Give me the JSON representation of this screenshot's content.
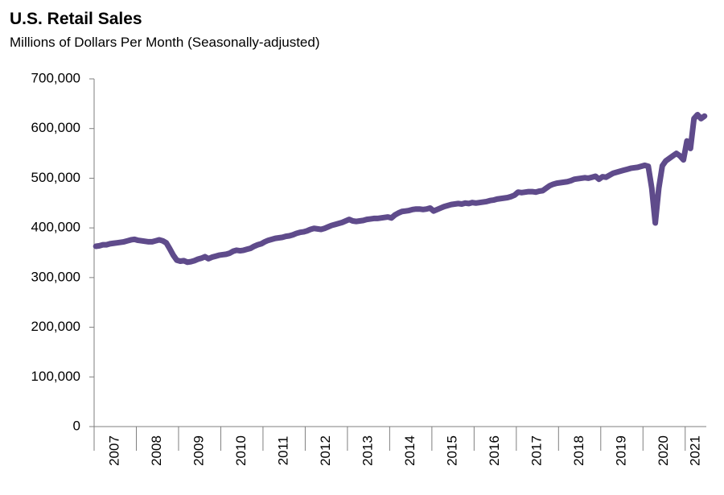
{
  "chart_data": {
    "type": "line",
    "title": "U.S. Retail Sales",
    "subtitle": "Millions of Dollars Per Month (Seasonally-adjusted)",
    "categories": [
      "2007",
      null,
      null,
      null,
      null,
      null,
      null,
      null,
      null,
      null,
      null,
      null,
      "2008",
      null,
      null,
      null,
      null,
      null,
      null,
      null,
      null,
      null,
      null,
      null,
      "2009",
      null,
      null,
      null,
      null,
      null,
      null,
      null,
      null,
      null,
      null,
      null,
      "2010",
      null,
      null,
      null,
      null,
      null,
      null,
      null,
      null,
      null,
      null,
      null,
      "2011",
      null,
      null,
      null,
      null,
      null,
      null,
      null,
      null,
      null,
      null,
      null,
      "2012",
      null,
      null,
      null,
      null,
      null,
      null,
      null,
      null,
      null,
      null,
      null,
      "2013",
      null,
      null,
      null,
      null,
      null,
      null,
      null,
      null,
      null,
      null,
      null,
      "2014",
      null,
      null,
      null,
      null,
      null,
      null,
      null,
      null,
      null,
      null,
      null,
      "2015",
      null,
      null,
      null,
      null,
      null,
      null,
      null,
      null,
      null,
      null,
      null,
      "2016",
      null,
      null,
      null,
      null,
      null,
      null,
      null,
      null,
      null,
      null,
      null,
      "2017",
      null,
      null,
      null,
      null,
      null,
      null,
      null,
      null,
      null,
      null,
      null,
      "2018",
      null,
      null,
      null,
      null,
      null,
      null,
      null,
      null,
      null,
      null,
      null,
      "2019",
      null,
      null,
      null,
      null,
      null,
      null,
      null,
      null,
      null,
      null,
      null,
      "2020",
      null,
      null,
      null,
      null,
      null,
      null,
      null,
      null,
      null,
      null,
      null,
      "2021",
      null,
      null,
      null,
      null,
      null
    ],
    "series": [
      {
        "color": "#5f4b8b",
        "values": [
          363000,
          364000,
          366000,
          366000,
          368000,
          369000,
          370000,
          371000,
          372000,
          374000,
          376000,
          377000,
          375000,
          374000,
          373000,
          372000,
          372000,
          374000,
          376000,
          374000,
          370000,
          358000,
          345000,
          335000,
          333000,
          334000,
          331000,
          332000,
          334000,
          337000,
          339000,
          342000,
          338000,
          341000,
          343000,
          345000,
          346000,
          347000,
          349000,
          353000,
          355000,
          354000,
          355000,
          357000,
          359000,
          363000,
          366000,
          368000,
          372000,
          375000,
          377000,
          379000,
          380000,
          381000,
          383000,
          384000,
          386000,
          389000,
          391000,
          392000,
          394000,
          397000,
          399000,
          398000,
          397000,
          399000,
          402000,
          405000,
          407000,
          409000,
          411000,
          414000,
          417000,
          414000,
          413000,
          414000,
          415000,
          417000,
          418000,
          419000,
          419000,
          420000,
          421000,
          422000,
          420000,
          426000,
          430000,
          433000,
          434000,
          435000,
          437000,
          438000,
          438000,
          437000,
          438000,
          440000,
          434000,
          437000,
          440000,
          443000,
          445000,
          447000,
          448000,
          449000,
          448000,
          450000,
          449000,
          451000,
          450000,
          451000,
          452000,
          453000,
          455000,
          456000,
          458000,
          459000,
          460000,
          461000,
          463000,
          466000,
          472000,
          471000,
          472000,
          473000,
          473000,
          472000,
          474000,
          475000,
          480000,
          485000,
          488000,
          490000,
          491000,
          492000,
          493000,
          495000,
          498000,
          499000,
          500000,
          501000,
          500000,
          502000,
          504000,
          498000,
          503000,
          502000,
          506000,
          510000,
          512000,
          514000,
          516000,
          518000,
          520000,
          521000,
          522000,
          524000,
          526000,
          524000,
          480000,
          410000,
          480000,
          525000,
          535000,
          540000,
          545000,
          550000,
          545000,
          537000,
          575000,
          560000,
          620000,
          628000,
          620000,
          625000
        ]
      }
    ],
    "ylim": [
      0,
      700000
    ],
    "yticks": [
      0,
      {
        "value": 100000,
        "label": "100,000"
      },
      {
        "value": 200000,
        "label": "200,000"
      },
      {
        "value": 300000,
        "label": "300,000"
      },
      {
        "value": 400000,
        "label": "400,000"
      },
      {
        "value": 500000,
        "label": "500,000"
      },
      {
        "value": 600000,
        "label": "600,000"
      },
      {
        "value": 700000,
        "label": "700,000"
      }
    ]
  }
}
